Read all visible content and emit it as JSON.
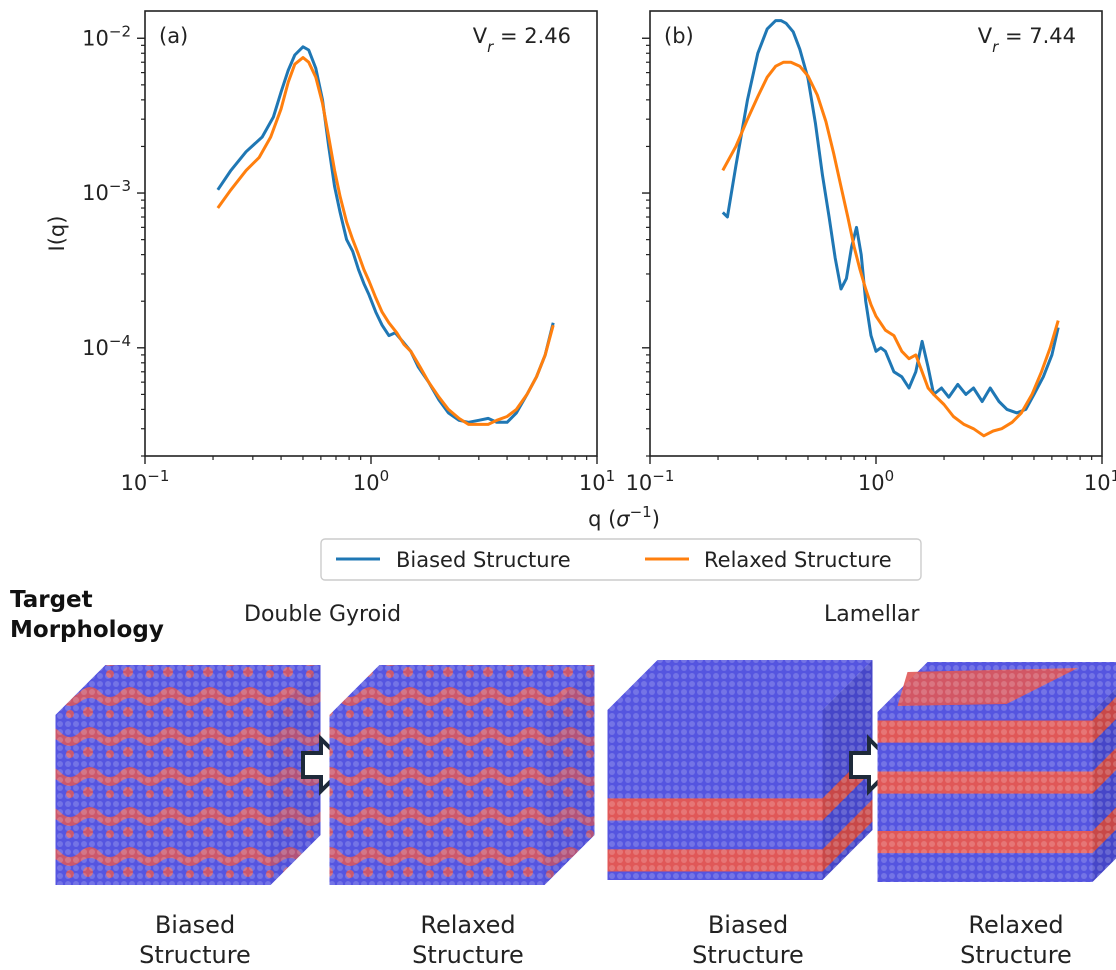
{
  "chart_data": [
    {
      "type": "line",
      "panel_label": "(a)",
      "annotation": "V",
      "annotation_sub": "r",
      "annotation_value": " = 2.46",
      "xscale": "log",
      "yscale": "log",
      "xlim": [
        0.1,
        10
      ],
      "ylim": [
        2e-05,
        0.015
      ],
      "ylabel": "I(q)",
      "series": [
        {
          "name": "Biased Structure",
          "color": "#1f77b4",
          "x": [
            0.21,
            0.24,
            0.28,
            0.33,
            0.37,
            0.4,
            0.43,
            0.46,
            0.5,
            0.53,
            0.57,
            0.61,
            0.65,
            0.69,
            0.73,
            0.78,
            0.83,
            0.88,
            0.93,
            0.98,
            1.05,
            1.12,
            1.2,
            1.28,
            1.38,
            1.5,
            1.62,
            1.8,
            2.0,
            2.2,
            2.45,
            2.7,
            3.0,
            3.3,
            3.6,
            4.0,
            4.4,
            4.9,
            5.4,
            5.9,
            6.4
          ],
          "y": [
            0.00105,
            0.0014,
            0.00185,
            0.0023,
            0.0031,
            0.0045,
            0.0062,
            0.0078,
            0.0088,
            0.0084,
            0.0064,
            0.004,
            0.002,
            0.0011,
            0.00075,
            0.0005,
            0.00042,
            0.00032,
            0.00026,
            0.00022,
            0.00017,
            0.00014,
            0.00012,
            0.000125,
            0.00011,
            9.5e-05,
            7.5e-05,
            6e-05,
            4.6e-05,
            3.8e-05,
            3.4e-05,
            3.3e-05,
            3.4e-05,
            3.5e-05,
            3.3e-05,
            3.3e-05,
            3.8e-05,
            5e-05,
            6.5e-05,
            9e-05,
            0.000145
          ]
        },
        {
          "name": "Relaxed Structure",
          "color": "#ff7f0e",
          "x": [
            0.21,
            0.24,
            0.28,
            0.32,
            0.36,
            0.4,
            0.43,
            0.46,
            0.5,
            0.53,
            0.57,
            0.61,
            0.65,
            0.69,
            0.73,
            0.78,
            0.83,
            0.88,
            0.93,
            0.98,
            1.05,
            1.12,
            1.2,
            1.3,
            1.4,
            1.5,
            1.65,
            1.8,
            2.0,
            2.2,
            2.45,
            2.7,
            3.0,
            3.3,
            3.6,
            4.0,
            4.4,
            4.9,
            5.4,
            5.9,
            6.4
          ],
          "y": [
            0.0008,
            0.00105,
            0.0014,
            0.0017,
            0.0023,
            0.0035,
            0.0052,
            0.0068,
            0.0075,
            0.007,
            0.0056,
            0.0038,
            0.0023,
            0.0014,
            0.00095,
            0.00065,
            0.0005,
            0.0004,
            0.00032,
            0.00027,
            0.00021,
            0.00017,
            0.000145,
            0.000125,
            0.000105,
            9.5e-05,
            7.5e-05,
            6e-05,
            4.8e-05,
            4e-05,
            3.5e-05,
            3.2e-05,
            3.2e-05,
            3.2e-05,
            3.4e-05,
            3.6e-05,
            4e-05,
            5e-05,
            6.5e-05,
            9e-05,
            0.00014
          ]
        }
      ]
    },
    {
      "type": "line",
      "panel_label": "(b)",
      "annotation": "V",
      "annotation_sub": "r",
      "annotation_value": " = 7.44",
      "xscale": "log",
      "yscale": "log",
      "xlim": [
        0.1,
        10
      ],
      "ylim": [
        2e-05,
        0.015
      ],
      "ylabel": "",
      "series": [
        {
          "name": "Biased Structure",
          "color": "#1f77b4",
          "x": [
            0.21,
            0.22,
            0.24,
            0.27,
            0.3,
            0.33,
            0.36,
            0.38,
            0.4,
            0.43,
            0.46,
            0.5,
            0.54,
            0.58,
            0.62,
            0.66,
            0.7,
            0.74,
            0.78,
            0.82,
            0.86,
            0.9,
            0.95,
            1.0,
            1.05,
            1.1,
            1.2,
            1.3,
            1.4,
            1.5,
            1.6,
            1.7,
            1.8,
            1.95,
            2.1,
            2.3,
            2.5,
            2.7,
            2.95,
            3.2,
            3.5,
            3.8,
            4.2,
            4.6,
            5.0,
            5.5,
            6.0,
            6.4
          ],
          "y": [
            0.00075,
            0.0007,
            0.0015,
            0.004,
            0.008,
            0.0115,
            0.013,
            0.013,
            0.0125,
            0.011,
            0.0085,
            0.0055,
            0.0028,
            0.0013,
            0.0007,
            0.00038,
            0.00024,
            0.00028,
            0.00045,
            0.0006,
            0.0004,
            0.0002,
            0.00012,
            9.5e-05,
            0.0001,
            9.5e-05,
            7e-05,
            6.5e-05,
            5.5e-05,
            7e-05,
            0.00011,
            7.5e-05,
            5e-05,
            5.5e-05,
            4.8e-05,
            5.8e-05,
            5e-05,
            5.5e-05,
            4.5e-05,
            5.5e-05,
            4.5e-05,
            4e-05,
            3.8e-05,
            4e-05,
            5e-05,
            6.5e-05,
            9e-05,
            0.000135
          ]
        },
        {
          "name": "Relaxed Structure",
          "color": "#ff7f0e",
          "x": [
            0.21,
            0.24,
            0.27,
            0.3,
            0.33,
            0.36,
            0.39,
            0.42,
            0.46,
            0.5,
            0.55,
            0.6,
            0.65,
            0.7,
            0.75,
            0.8,
            0.85,
            0.9,
            0.95,
            1.0,
            1.1,
            1.2,
            1.3,
            1.4,
            1.5,
            1.6,
            1.7,
            1.8,
            2.0,
            2.2,
            2.45,
            2.7,
            3.0,
            3.3,
            3.6,
            4.0,
            4.4,
            4.9,
            5.4,
            5.9,
            6.4
          ],
          "y": [
            0.0014,
            0.002,
            0.003,
            0.0042,
            0.0056,
            0.0066,
            0.007,
            0.007,
            0.0066,
            0.0057,
            0.0043,
            0.0029,
            0.0018,
            0.0011,
            0.0007,
            0.00045,
            0.00032,
            0.00024,
            0.00019,
            0.00016,
            0.00013,
            0.00012,
            9.5e-05,
            8.5e-05,
            9e-05,
            7e-05,
            5.5e-05,
            5e-05,
            4.3e-05,
            3.6e-05,
            3.2e-05,
            3e-05,
            2.7e-05,
            2.9e-05,
            3e-05,
            3.3e-05,
            3.8e-05,
            5e-05,
            7e-05,
            0.0001,
            0.00015
          ]
        }
      ]
    }
  ],
  "x_ticks": [
    {
      "base": "10",
      "exp": "−1",
      "value": 0.1
    },
    {
      "base": "10",
      "exp": "0",
      "value": 1
    },
    {
      "base": "10",
      "exp": "1",
      "value": 10
    }
  ],
  "y_ticks": [
    {
      "base": "10",
      "exp": "−2",
      "value": 0.01
    },
    {
      "base": "10",
      "exp": "−3",
      "value": 0.001
    },
    {
      "base": "10",
      "exp": "−4",
      "value": 0.0001
    }
  ],
  "xlabel_main": "q (",
  "xlabel_sym": "σ",
  "xlabel_exp": "−1",
  "xlabel_end": ")",
  "legend": [
    {
      "label": "Biased Structure",
      "color": "#1f77b4"
    },
    {
      "label": "Relaxed Structure",
      "color": "#ff7f0e"
    }
  ],
  "morphology": {
    "title_line1": "Target",
    "title_line2": "Morphology",
    "groups": [
      {
        "heading": "Double Gyroid",
        "before_line1": "Biased",
        "before_line2": "Structure",
        "after_line1": "Relaxed",
        "after_line2": "Structure"
      },
      {
        "heading": "Lamellar",
        "before_line1": "Biased",
        "before_line2": "Structure",
        "after_line1": "Relaxed",
        "after_line2": "Structure"
      }
    ],
    "colors": {
      "blue": "#5555e0",
      "red": "#e05858"
    }
  }
}
